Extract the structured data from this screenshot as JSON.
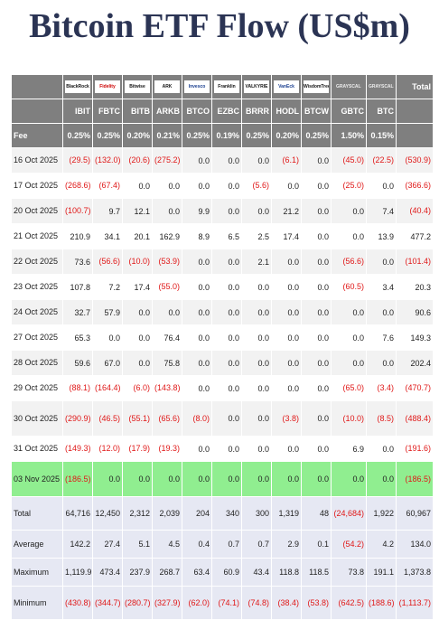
{
  "title": "Bitcoin ETF Flow (US$m)",
  "total_label": "Total",
  "fee_label": "Fee",
  "issuers": [
    "BlackRock",
    "Fidelity",
    "Bitwise",
    "ARK",
    "Invesco",
    "Franklin",
    "VALKYRIE",
    "VanEck",
    "WisdomTree",
    "GRAYSCALE",
    "GRAYSCALE"
  ],
  "tickers": [
    "IBIT",
    "FBTC",
    "BITB",
    "ARKB",
    "BTCO",
    "EZBC",
    "BRRR",
    "HODL",
    "BTCW",
    "GBTC",
    "BTC"
  ],
  "fees": [
    "0.25%",
    "0.25%",
    "0.20%",
    "0.21%",
    "0.25%",
    "0.19%",
    "0.25%",
    "0.20%",
    "0.25%",
    "1.50%",
    "0.15%"
  ],
  "rows": [
    {
      "date": "16 Oct 2025",
      "values": [
        "(29.5)",
        "(132.0)",
        "(20.6)",
        "(275.2)",
        "0.0",
        "0.0",
        "0.0",
        "(6.1)",
        "0.0",
        "(45.0)",
        "(22.5)"
      ],
      "total": "(530.9)"
    },
    {
      "date": "17 Oct 2025",
      "values": [
        "(268.6)",
        "(67.4)",
        "0.0",
        "0.0",
        "0.0",
        "0.0",
        "(5.6)",
        "0.0",
        "0.0",
        "(25.0)",
        "0.0"
      ],
      "total": "(366.6)"
    },
    {
      "date": "20 Oct 2025",
      "values": [
        "(100.7)",
        "9.7",
        "12.1",
        "0.0",
        "9.9",
        "0.0",
        "0.0",
        "21.2",
        "0.0",
        "0.0",
        "7.4"
      ],
      "total": "(40.4)"
    },
    {
      "date": "21 Oct 2025",
      "values": [
        "210.9",
        "34.1",
        "20.1",
        "162.9",
        "8.9",
        "6.5",
        "2.5",
        "17.4",
        "0.0",
        "0.0",
        "13.9"
      ],
      "total": "477.2"
    },
    {
      "date": "22 Oct 2025",
      "values": [
        "73.6",
        "(56.6)",
        "(10.0)",
        "(53.9)",
        "0.0",
        "0.0",
        "2.1",
        "0.0",
        "0.0",
        "(56.6)",
        "0.0"
      ],
      "total": "(101.4)"
    },
    {
      "date": "23 Oct 2025",
      "values": [
        "107.8",
        "7.2",
        "17.4",
        "(55.0)",
        "0.0",
        "0.0",
        "0.0",
        "0.0",
        "0.0",
        "(60.5)",
        "3.4"
      ],
      "total": "20.3"
    },
    {
      "date": "24 Oct 2025",
      "values": [
        "32.7",
        "57.9",
        "0.0",
        "0.0",
        "0.0",
        "0.0",
        "0.0",
        "0.0",
        "0.0",
        "0.0",
        "0.0"
      ],
      "total": "90.6"
    },
    {
      "date": "27 Oct 2025",
      "values": [
        "65.3",
        "0.0",
        "0.0",
        "76.4",
        "0.0",
        "0.0",
        "0.0",
        "0.0",
        "0.0",
        "0.0",
        "7.6"
      ],
      "total": "149.3"
    },
    {
      "date": "28 Oct 2025",
      "values": [
        "59.6",
        "67.0",
        "0.0",
        "75.8",
        "0.0",
        "0.0",
        "0.0",
        "0.0",
        "0.0",
        "0.0",
        "0.0"
      ],
      "total": "202.4"
    },
    {
      "date": "29 Oct 2025",
      "values": [
        "(88.1)",
        "(164.4)",
        "(6.0)",
        "(143.8)",
        "0.0",
        "0.0",
        "0.0",
        "0.0",
        "0.0",
        "(65.0)",
        "(3.4)"
      ],
      "total": "(470.7)"
    },
    {
      "date": "30 Oct 2025",
      "values": [
        "(290.9)",
        "(46.5)",
        "(55.1)",
        "(65.6)",
        "(8.0)",
        "0.0",
        "0.0",
        "(3.8)",
        "0.0",
        "(10.0)",
        "(8.5)"
      ],
      "total": "(488.4)",
      "tall": true
    },
    {
      "date": "31 Oct 2025",
      "values": [
        "(149.3)",
        "(12.0)",
        "(17.9)",
        "(19.3)",
        "0.0",
        "0.0",
        "0.0",
        "0.0",
        "0.0",
        "6.9",
        "0.0"
      ],
      "total": "(191.6)"
    },
    {
      "date": "03 Nov 2025",
      "values": [
        "(186.5)",
        "0.0",
        "0.0",
        "0.0",
        "0.0",
        "0.0",
        "0.0",
        "0.0",
        "0.0",
        "0.0",
        "0.0"
      ],
      "total": "(186.5)",
      "tall": true,
      "highlight": true
    }
  ],
  "summary": [
    {
      "label": "Total",
      "values": [
        "64,716",
        "12,450",
        "2,312",
        "2,039",
        "204",
        "340",
        "300",
        "1,319",
        "48",
        "(24,684)",
        "1,922"
      ],
      "total": "60,967",
      "tall": true
    },
    {
      "label": "Average",
      "values": [
        "142.2",
        "27.4",
        "5.1",
        "4.5",
        "0.4",
        "0.7",
        "0.7",
        "2.9",
        "0.1",
        "(54.2)",
        "4.2"
      ],
      "total": "134.0"
    },
    {
      "label": "Maximum",
      "values": [
        "1,119.9",
        "473.4",
        "237.9",
        "268.7",
        "63.4",
        "60.9",
        "43.4",
        "118.8",
        "118.5",
        "73.8",
        "191.1"
      ],
      "total": "1,373.8"
    },
    {
      "label": "Minimum",
      "values": [
        "(430.8)",
        "(344.7)",
        "(280.7)",
        "(327.9)",
        "(62.0)",
        "(74.1)",
        "(74.8)",
        "(38.4)",
        "(53.8)",
        "(642.5)",
        "(188.6)"
      ],
      "total": "(1,113.7)",
      "tall": true
    }
  ]
}
